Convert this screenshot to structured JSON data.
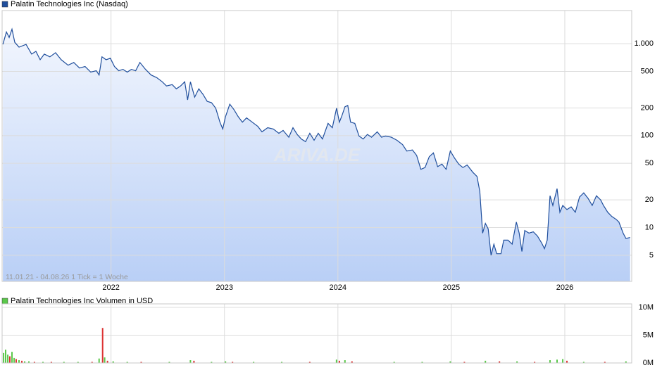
{
  "chart_data": [
    {
      "type": "line",
      "title": "Palatin Technologies Inc (Nasdaq)",
      "color": "#1f4e9c",
      "area": true,
      "log_y": true,
      "grid": true,
      "annotation": "11.01.21 - 04.08.26   1 Tick = 1 Woche",
      "watermark": "ARIVA.DE",
      "xlim": [
        2021.04,
        2026.59
      ],
      "xticks": [
        2022,
        2023,
        2024,
        2025,
        2026
      ],
      "ylim": [
        2.6,
        2100
      ],
      "yticks": [
        5,
        10,
        20,
        50,
        100,
        200,
        500,
        {
          "value": 1000,
          "label": "1.000"
        }
      ],
      "x": [
        2021.047,
        2021.078,
        2021.102,
        2021.127,
        2021.152,
        2021.189,
        2021.251,
        2021.3,
        2021.338,
        2021.375,
        2021.412,
        2021.461,
        2021.511,
        2021.561,
        2021.622,
        2021.672,
        2021.722,
        2021.771,
        2021.821,
        2021.87,
        2021.895,
        2021.92,
        2021.957,
        2021.994,
        2022.031,
        2022.068,
        2022.105,
        2022.143,
        2022.18,
        2022.217,
        2022.254,
        2022.304,
        2022.353,
        2022.403,
        2022.452,
        2022.489,
        2022.539,
        2022.576,
        2022.613,
        2022.65,
        2022.675,
        2022.7,
        2022.737,
        2022.774,
        2022.811,
        2022.848,
        2022.886,
        2022.923,
        2022.96,
        2022.985,
        2023.009,
        2023.047,
        2023.084,
        2023.121,
        2023.158,
        2023.195,
        2023.245,
        2023.294,
        2023.331,
        2023.381,
        2023.431,
        2023.48,
        2023.517,
        2023.567,
        2023.604,
        2023.641,
        2023.678,
        2023.715,
        2023.752,
        2023.79,
        2023.827,
        2023.864,
        2023.913,
        2023.951,
        2023.988,
        2024.013,
        2024.037,
        2024.062,
        2024.087,
        2024.112,
        2024.149,
        2024.186,
        2024.223,
        2024.26,
        2024.297,
        2024.347,
        2024.384,
        2024.421,
        2024.471,
        2024.52,
        2024.57,
        2024.607,
        2024.657,
        2024.694,
        2024.731,
        2024.768,
        2024.805,
        2024.842,
        2024.879,
        2024.917,
        2024.954,
        2024.991,
        2025.028,
        2025.065,
        2025.102,
        2025.139,
        2025.189,
        2025.226,
        2025.251,
        2025.276,
        2025.3,
        2025.325,
        2025.35,
        2025.375,
        2025.4,
        2025.437,
        2025.462,
        2025.499,
        2025.536,
        2025.573,
        2025.598,
        2025.622,
        2025.647,
        2025.684,
        2025.722,
        2025.759,
        2025.796,
        2025.821,
        2025.845,
        2025.87,
        2025.895,
        2025.932,
        2025.957,
        2025.982,
        2026.019,
        2026.056,
        2026.093,
        2026.13,
        2026.167,
        2026.205,
        2026.242,
        2026.279,
        2026.316,
        2026.341,
        2026.378,
        2026.415,
        2026.452,
        2026.477,
        2026.514,
        2026.539,
        2026.576
      ],
      "values": [
        982,
        1343,
        1169,
        1439,
        1035,
        917,
        982,
        771,
        826,
        670,
        771,
        719,
        798,
        670,
        583,
        625,
        544,
        564,
        491,
        508,
        457,
        719,
        670,
        695,
        564,
        508,
        526,
        491,
        526,
        508,
        625,
        526,
        457,
        427,
        385,
        347,
        359,
        323,
        347,
        385,
        245,
        385,
        262,
        323,
        281,
        236,
        228,
        199,
        140,
        118,
        161,
        220,
        192,
        161,
        140,
        156,
        140,
        126,
        110,
        122,
        118,
        106,
        114,
        96,
        122,
        103,
        92,
        86,
        106,
        89,
        106,
        92,
        136,
        122,
        199,
        140,
        167,
        206,
        213,
        140,
        136,
        99,
        92,
        103,
        96,
        110,
        96,
        99,
        96,
        89,
        80,
        68,
        70,
        61,
        43,
        45,
        59,
        65,
        46,
        49,
        43,
        68,
        57,
        49,
        45,
        48,
        40,
        36,
        24.7,
        8.7,
        11.1,
        9.7,
        5.0,
        6.6,
        5.2,
        5.2,
        7.3,
        7.3,
        6.6,
        11.5,
        8.7,
        5.5,
        9.3,
        8.7,
        9.0,
        8.1,
        6.8,
        5.9,
        7.3,
        22.2,
        17.4,
        26.5,
        14.7,
        17.4,
        15.7,
        16.8,
        14.7,
        21.5,
        23.9,
        20.8,
        17.4,
        22.2,
        20,
        17.4,
        14.7,
        13.2,
        12.3,
        11.5,
        8.7,
        7.6,
        7.8
      ]
    },
    {
      "type": "bar",
      "title": "Palatin Technologies Inc Volumen in USD",
      "grid": true,
      "xlim": [
        2021.04,
        2026.59
      ],
      "xticks": [
        2022,
        2023,
        2024,
        2025,
        2026
      ],
      "ylim": [
        0,
        10000000
      ],
      "yticks": [
        {
          "value": 0,
          "label": "0M"
        },
        {
          "value": 5000000,
          "label": "5M"
        },
        {
          "value": 10000000,
          "label": "10M"
        }
      ],
      "x": [
        2021.053,
        2021.071,
        2021.09,
        2021.108,
        2021.127,
        2021.146,
        2021.164,
        2021.189,
        2021.214,
        2021.239,
        2021.276,
        2021.325,
        2021.4,
        2021.474,
        2021.585,
        2021.709,
        2021.833,
        2021.895,
        2021.926,
        2021.944,
        2021.969,
        2022.019,
        2022.143,
        2022.266,
        2022.514,
        2022.7,
        2022.731,
        2022.886,
        2023.009,
        2023.071,
        2023.257,
        2023.505,
        2023.752,
        2023.988,
        2024.013,
        2024.062,
        2024.124,
        2024.496,
        2024.743,
        2024.991,
        2025.115,
        2025.3,
        2025.424,
        2025.579,
        2025.734,
        2025.87,
        2025.932,
        2025.982,
        2026.019,
        2026.167,
        2026.353,
        2026.539
      ],
      "values": [
        1800000,
        2400000,
        1500000,
        1200000,
        2000000,
        900000,
        700000,
        500000,
        400000,
        300000,
        300000,
        200000,
        200000,
        200000,
        200000,
        200000,
        200000,
        800000,
        6300000,
        1000000,
        400000,
        300000,
        200000,
        200000,
        200000,
        500000,
        400000,
        200000,
        300000,
        200000,
        200000,
        200000,
        200000,
        600000,
        400000,
        500000,
        300000,
        200000,
        200000,
        300000,
        200000,
        400000,
        300000,
        300000,
        200000,
        500000,
        600000,
        700000,
        400000,
        200000,
        200000,
        300000
      ],
      "colors": [
        "#5ac84a",
        "#5ac84a",
        "#5ac84a",
        "#dd3333",
        "#5ac84a",
        "#5ac84a",
        "#dd3333",
        "#5ac84a",
        "#dd3333",
        "#5ac84a",
        "#5ac84a",
        "#dd3333",
        "#5ac84a",
        "#dd3333",
        "#5ac84a",
        "#5ac84a",
        "#dd3333",
        "#5ac84a",
        "#dd3333",
        "#5ac84a",
        "#dd3333",
        "#5ac84a",
        "#5ac84a",
        "#dd3333",
        "#5ac84a",
        "#5ac84a",
        "#dd3333",
        "#5ac84a",
        "#5ac84a",
        "#dd3333",
        "#5ac84a",
        "#5ac84a",
        "#dd3333",
        "#5ac84a",
        "#dd3333",
        "#5ac84a",
        "#dd3333",
        "#5ac84a",
        "#5ac84a",
        "#5ac84a",
        "#dd3333",
        "#5ac84a",
        "#dd3333",
        "#5ac84a",
        "#dd3333",
        "#5ac84a",
        "#5ac84a",
        "#5ac84a",
        "#dd3333",
        "#5ac84a",
        "#dd3333",
        "#5ac84a"
      ],
      "legend_color": "#5ac84a"
    }
  ]
}
